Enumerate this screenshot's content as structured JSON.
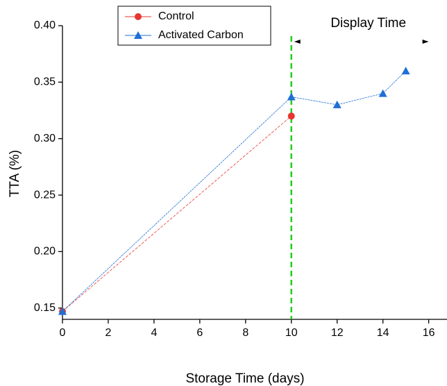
{
  "chart_data": {
    "type": "line",
    "x_label": "Storage Time (days)",
    "y_label": "TTA (%)",
    "series": [
      {
        "name": "Control",
        "color": "#e8352f",
        "marker": "circle",
        "x": [
          0,
          10
        ],
        "values": [
          0.147,
          0.32
        ]
      },
      {
        "name": "Activated Carbon",
        "color": "#1f6fd6",
        "marker": "triangle",
        "x": [
          0,
          10,
          12,
          14,
          15
        ],
        "values": [
          0.147,
          0.337,
          0.33,
          0.34,
          0.36
        ]
      }
    ],
    "xlim": [
      0,
      16.8
    ],
    "xticks": [
      0,
      2,
      4,
      6,
      8,
      10,
      12,
      14,
      16
    ],
    "ylim": [
      0.14,
      0.4
    ],
    "yticks": [
      0.15,
      {
        "value": 0.2,
        "label": "0.20"
      },
      0.25,
      {
        "value": 0.3,
        "label": "0.30"
      },
      0.35,
      {
        "value": 0.4,
        "label": "0.40"
      }
    ],
    "vline": {
      "x": 10,
      "color": "#22cc22"
    },
    "annotation": {
      "text": "Display Time",
      "x_start": 10,
      "x_end": 16
    },
    "legend": "upper left"
  }
}
